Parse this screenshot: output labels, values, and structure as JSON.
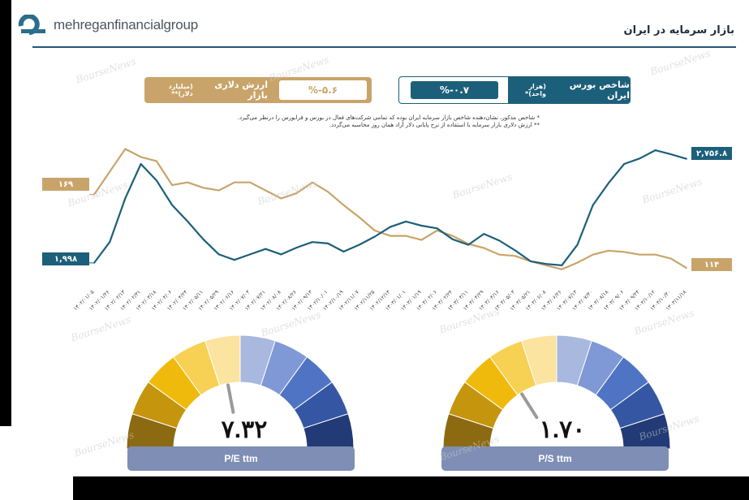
{
  "header": {
    "logo_text": "mehreganfinancialgroup",
    "title": "بازار سرمایه در ایران"
  },
  "kpi": {
    "index_label": "شاخص بورس ایران",
    "index_unit": "(هزار واحد)*",
    "index_change": "%-۰.۷",
    "dollar_label": "ارزش دلاری بازار",
    "dollar_unit": "(میلیارد دلار)**",
    "dollar_change": "%-۵.۶"
  },
  "notes": {
    "note1": "*   شاخص مذکور، نشان‌دهنده شاخص بازار سرمایه ایران بوده که تمامی شرکت‌های فعال در بورس و فرابورس را درنظر می‌گیرد.",
    "note2": "**  ارزش دلاری بازار سرمایه با استفاده از نرخ پایانی دلار آزاد همان روز محاسبه می‌گردد."
  },
  "watermark": "BourseNews",
  "colors": {
    "teal": "#1c5f7a",
    "gold": "#c9a46a"
  },
  "chart_data": [
    {
      "type": "line",
      "categories": [
        "۱۴۰۲/۰۱/۰۵",
        "۱۴۰۲/۰۱/۲۶",
        "۱۴۰۲/۰۲/۱۳",
        "۱۴۰۲/۰۲/۳۱",
        "۱۴۰۲/۰۳/۱۸",
        "۱۴۰۲/۰۴/۰۶",
        "۱۴۰۲/۰۴/۲۴",
        "۱۴۰۲/۰۵/۱۱",
        "۱۴۰۲/۰۵/۲۹",
        "۱۴۰۲/۰۶/۱۶",
        "۱۴۰۲/۰۷/۰۳",
        "۱۴۰۲/۰۷/۲۱",
        "۱۴۰۲/۰۸/۰۸",
        "۱۴۰۲/۰۸/۲۶",
        "۱۴۰۲/۰۹/۱۳",
        "۱۴۰۲/۱۰/۰۱",
        "۱۴۰۲/۱۰/۱۹",
        "۱۴۰۲/۱۱/۰۷",
        "۱۴۰۲/۱۱/۲۵",
        "۱۴۰۲/۱۲/۱۳",
        "۱۴۰۳/۰۱/۰۱",
        "۱۴۰۳/۰۱/۱۹",
        "۱۴۰۳/۰۲/۰۶",
        "۱۴۰۳/۰۲/۲۴",
        "۱۴۰۳/۰۳/۱۱",
        "۱۴۰۳/۰۳/۲۹",
        "۱۴۰۳/۰۴/۱۶",
        "۱۴۰۳/۰۵/۰۳",
        "۱۴۰۳/۰۵/۲۱",
        "۱۴۰۳/۰۶/۰۸",
        "۱۴۰۳/۰۶/۲۶",
        "۱۴۰۳/۰۷/۱۳",
        "۱۴۰۳/۰۷/۳۰",
        "۱۴۰۳/۰۸/۱۸",
        "۱۴۰۳/۰۹/۰۶",
        "۱۴۰۳/۰۹/۲۴",
        "۱۴۰۳/۱۰/۱۲",
        "۱۴۰۳/۱۰/۳۰",
        "۱۴۰۳/۱۱/۱۸"
      ],
      "series": [
        {
          "name": "شاخص بورس ایران",
          "color": "#1c5f7a",
          "start_label": "۱,۹۹۸",
          "end_label": "۲,۷۵۶.۸",
          "values": [
            1998,
            2150,
            2470,
            2720,
            2600,
            2420,
            2300,
            2170,
            2060,
            2020,
            2060,
            2100,
            2060,
            2110,
            2150,
            2140,
            2080,
            2130,
            2190,
            2260,
            2300,
            2270,
            2250,
            2170,
            2130,
            2210,
            2160,
            2090,
            2010,
            1990,
            1980,
            2130,
            2420,
            2580,
            2720,
            2760,
            2820,
            2790,
            2757
          ]
        },
        {
          "name": "ارزش دلاری بازار",
          "color": "#c9a46a",
          "start_label": "۱۶۹",
          "end_label": "۱۱۴",
          "values": [
            169,
            186,
            203,
            197,
            194,
            176,
            178,
            174,
            172,
            178,
            178,
            172,
            166,
            170,
            178,
            171,
            161,
            152,
            142,
            138,
            138,
            135,
            142,
            138,
            132,
            129,
            124,
            123,
            119,
            116,
            113,
            118,
            124,
            127,
            126,
            124,
            124,
            121,
            114
          ]
        }
      ]
    },
    {
      "type": "gauge",
      "label": "P/E ttm",
      "value": 7.32,
      "value_label": "۷.۳۲",
      "needle_fraction": 0.44
    },
    {
      "type": "gauge",
      "label": "P/S ttm",
      "value": 1.7,
      "value_label": "۱.۷۰",
      "needle_fraction": 0.32
    }
  ]
}
